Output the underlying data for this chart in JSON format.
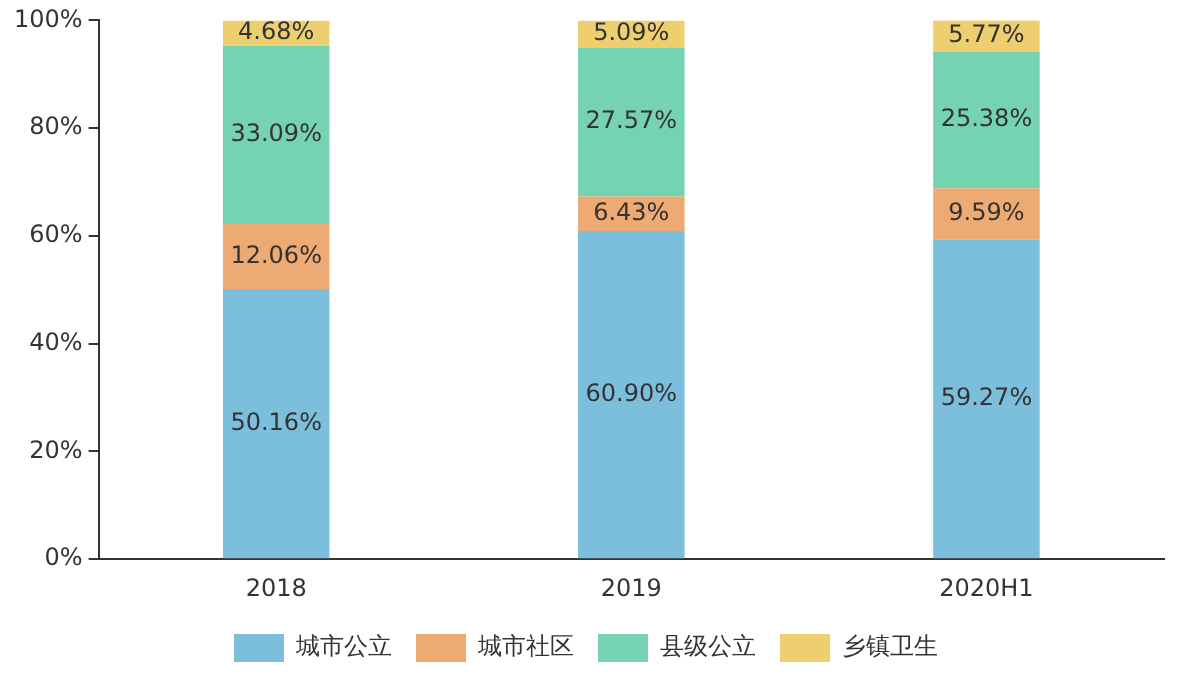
{
  "chart_data": {
    "type": "bar",
    "stacked": true,
    "categories": [
      "2018",
      "2019",
      "2020H1"
    ],
    "series": [
      {
        "name": "城市公立",
        "color": "#7bbfdc",
        "values": [
          50.16,
          60.9,
          59.27
        ],
        "value_labels": [
          "50.16%",
          "60.90%",
          "59.27%"
        ]
      },
      {
        "name": "城市社区",
        "color": "#edaa72",
        "values": [
          12.06,
          6.43,
          9.59
        ],
        "value_labels": [
          "12.06%",
          "6.43%",
          "9.59%"
        ]
      },
      {
        "name": "县级公立",
        "color": "#75d3b1",
        "values": [
          33.09,
          27.57,
          25.38
        ],
        "value_labels": [
          "33.09%",
          "27.57%",
          "25.38%"
        ]
      },
      {
        "name": "乡镇卫生",
        "color": "#edcf70",
        "values": [
          4.68,
          5.09,
          5.77
        ],
        "value_labels": [
          "4.68%",
          "5.09%",
          "5.77%"
        ]
      }
    ],
    "ylim": [
      0,
      100
    ],
    "yticks": [
      {
        "value": 0,
        "label": "0%"
      },
      {
        "value": 20,
        "label": "20%"
      },
      {
        "value": 40,
        "label": "40%"
      },
      {
        "value": 60,
        "label": "60%"
      },
      {
        "value": 80,
        "label": "80%"
      },
      {
        "value": 100,
        "label": "100%"
      }
    ],
    "grid": false,
    "legend": "bottom"
  }
}
